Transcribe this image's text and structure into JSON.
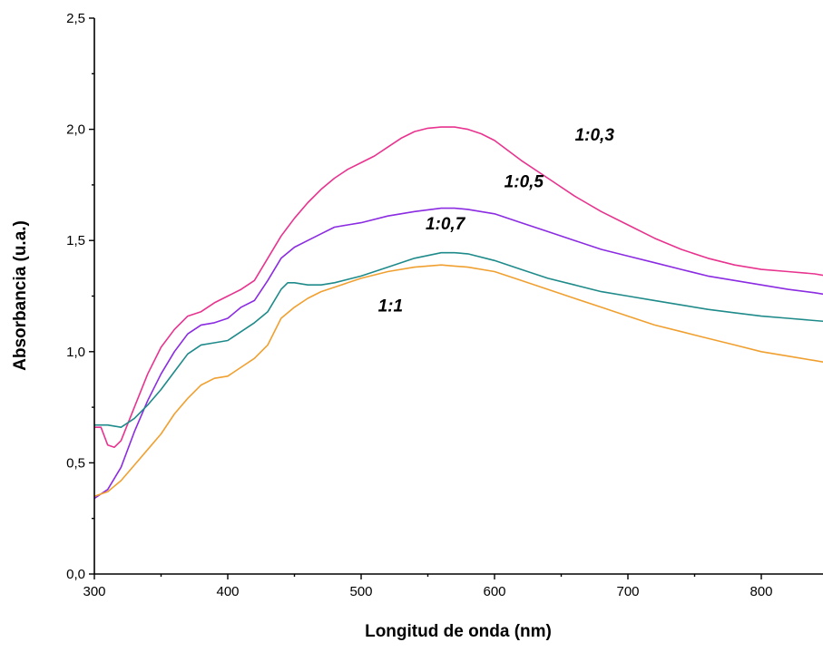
{
  "chart_data": {
    "type": "line",
    "xlabel": "Longitud de onda (nm)",
    "ylabel": "Absorbancia (u.a.)",
    "xlim": [
      300,
      850
    ],
    "ylim": [
      0,
      2.5
    ],
    "x_ticks": [
      300,
      400,
      500,
      600,
      700,
      800
    ],
    "x_tick_labels": [
      "300",
      "400",
      "500",
      "600",
      "700",
      "800"
    ],
    "y_ticks": [
      0,
      0.5,
      1.0,
      1.5,
      2.0,
      2.5
    ],
    "y_tick_labels": [
      "0,0",
      "0,5",
      "1,0",
      "1,5",
      "2,0",
      "2,5"
    ],
    "grid": false,
    "series": [
      {
        "name": "1:0,3",
        "color": "#e8338f",
        "points": [
          [
            300,
            0.66
          ],
          [
            305,
            0.66
          ],
          [
            310,
            0.58
          ],
          [
            315,
            0.57
          ],
          [
            320,
            0.6
          ],
          [
            330,
            0.75
          ],
          [
            340,
            0.9
          ],
          [
            350,
            1.02
          ],
          [
            360,
            1.1
          ],
          [
            370,
            1.16
          ],
          [
            380,
            1.18
          ],
          [
            390,
            1.22
          ],
          [
            400,
            1.25
          ],
          [
            410,
            1.28
          ],
          [
            420,
            1.32
          ],
          [
            430,
            1.42
          ],
          [
            440,
            1.52
          ],
          [
            450,
            1.6
          ],
          [
            460,
            1.67
          ],
          [
            470,
            1.73
          ],
          [
            480,
            1.78
          ],
          [
            490,
            1.82
          ],
          [
            500,
            1.85
          ],
          [
            510,
            1.88
          ],
          [
            520,
            1.92
          ],
          [
            530,
            1.96
          ],
          [
            540,
            1.99
          ],
          [
            550,
            2.005
          ],
          [
            560,
            2.01
          ],
          [
            570,
            2.01
          ],
          [
            580,
            2.0
          ],
          [
            590,
            1.98
          ],
          [
            600,
            1.95
          ],
          [
            620,
            1.86
          ],
          [
            640,
            1.78
          ],
          [
            660,
            1.7
          ],
          [
            680,
            1.63
          ],
          [
            700,
            1.57
          ],
          [
            720,
            1.51
          ],
          [
            740,
            1.46
          ],
          [
            760,
            1.42
          ],
          [
            780,
            1.39
          ],
          [
            800,
            1.37
          ],
          [
            820,
            1.36
          ],
          [
            840,
            1.35
          ],
          [
            850,
            1.34
          ]
        ]
      },
      {
        "name": "1:0,5",
        "color": "#8b2be2",
        "points": [
          [
            300,
            0.34
          ],
          [
            310,
            0.38
          ],
          [
            320,
            0.48
          ],
          [
            330,
            0.64
          ],
          [
            340,
            0.78
          ],
          [
            350,
            0.9
          ],
          [
            360,
            1.0
          ],
          [
            370,
            1.08
          ],
          [
            380,
            1.12
          ],
          [
            390,
            1.13
          ],
          [
            400,
            1.15
          ],
          [
            410,
            1.2
          ],
          [
            420,
            1.23
          ],
          [
            430,
            1.32
          ],
          [
            440,
            1.42
          ],
          [
            450,
            1.47
          ],
          [
            460,
            1.5
          ],
          [
            470,
            1.53
          ],
          [
            480,
            1.56
          ],
          [
            490,
            1.57
          ],
          [
            500,
            1.58
          ],
          [
            520,
            1.61
          ],
          [
            540,
            1.63
          ],
          [
            560,
            1.645
          ],
          [
            570,
            1.645
          ],
          [
            580,
            1.64
          ],
          [
            600,
            1.62
          ],
          [
            620,
            1.58
          ],
          [
            640,
            1.54
          ],
          [
            660,
            1.5
          ],
          [
            680,
            1.46
          ],
          [
            700,
            1.43
          ],
          [
            720,
            1.4
          ],
          [
            740,
            1.37
          ],
          [
            760,
            1.34
          ],
          [
            780,
            1.32
          ],
          [
            800,
            1.3
          ],
          [
            820,
            1.28
          ],
          [
            840,
            1.265
          ],
          [
            850,
            1.255
          ]
        ]
      },
      {
        "name": "1:0,7",
        "color": "#1f8a8a",
        "points": [
          [
            300,
            0.67
          ],
          [
            310,
            0.67
          ],
          [
            315,
            0.665
          ],
          [
            320,
            0.66
          ],
          [
            330,
            0.7
          ],
          [
            340,
            0.76
          ],
          [
            350,
            0.83
          ],
          [
            360,
            0.91
          ],
          [
            370,
            0.99
          ],
          [
            380,
            1.03
          ],
          [
            390,
            1.04
          ],
          [
            400,
            1.05
          ],
          [
            410,
            1.09
          ],
          [
            420,
            1.13
          ],
          [
            430,
            1.18
          ],
          [
            440,
            1.28
          ],
          [
            445,
            1.31
          ],
          [
            450,
            1.31
          ],
          [
            460,
            1.3
          ],
          [
            470,
            1.3
          ],
          [
            480,
            1.31
          ],
          [
            500,
            1.34
          ],
          [
            520,
            1.38
          ],
          [
            540,
            1.42
          ],
          [
            560,
            1.445
          ],
          [
            570,
            1.445
          ],
          [
            580,
            1.44
          ],
          [
            600,
            1.41
          ],
          [
            620,
            1.37
          ],
          [
            640,
            1.33
          ],
          [
            660,
            1.3
          ],
          [
            680,
            1.27
          ],
          [
            700,
            1.25
          ],
          [
            720,
            1.23
          ],
          [
            740,
            1.21
          ],
          [
            760,
            1.19
          ],
          [
            780,
            1.175
          ],
          [
            800,
            1.16
          ],
          [
            820,
            1.15
          ],
          [
            840,
            1.14
          ],
          [
            850,
            1.135
          ]
        ]
      },
      {
        "name": "1:1",
        "color": "#f0a030",
        "points": [
          [
            300,
            0.35
          ],
          [
            310,
            0.37
          ],
          [
            320,
            0.42
          ],
          [
            330,
            0.49
          ],
          [
            340,
            0.56
          ],
          [
            350,
            0.63
          ],
          [
            360,
            0.72
          ],
          [
            370,
            0.79
          ],
          [
            380,
            0.85
          ],
          [
            390,
            0.88
          ],
          [
            400,
            0.89
          ],
          [
            410,
            0.93
          ],
          [
            420,
            0.97
          ],
          [
            430,
            1.03
          ],
          [
            440,
            1.15
          ],
          [
            450,
            1.2
          ],
          [
            460,
            1.24
          ],
          [
            470,
            1.27
          ],
          [
            480,
            1.29
          ],
          [
            490,
            1.31
          ],
          [
            500,
            1.33
          ],
          [
            520,
            1.36
          ],
          [
            540,
            1.38
          ],
          [
            560,
            1.39
          ],
          [
            570,
            1.385
          ],
          [
            580,
            1.38
          ],
          [
            600,
            1.36
          ],
          [
            620,
            1.32
          ],
          [
            640,
            1.28
          ],
          [
            660,
            1.24
          ],
          [
            680,
            1.2
          ],
          [
            700,
            1.16
          ],
          [
            720,
            1.12
          ],
          [
            740,
            1.09
          ],
          [
            760,
            1.06
          ],
          [
            780,
            1.03
          ],
          [
            800,
            1.0
          ],
          [
            820,
            0.98
          ],
          [
            840,
            0.96
          ],
          [
            850,
            0.95
          ]
        ]
      }
    ],
    "annotations": [
      {
        "text": "1:0,3",
        "x": 675,
        "y": 1.95
      },
      {
        "text": "1:0,5",
        "x": 622,
        "y": 1.74
      },
      {
        "text": "1:0,7",
        "x": 563,
        "y": 1.55
      },
      {
        "text": "1:1",
        "x": 522,
        "y": 1.18
      }
    ]
  }
}
